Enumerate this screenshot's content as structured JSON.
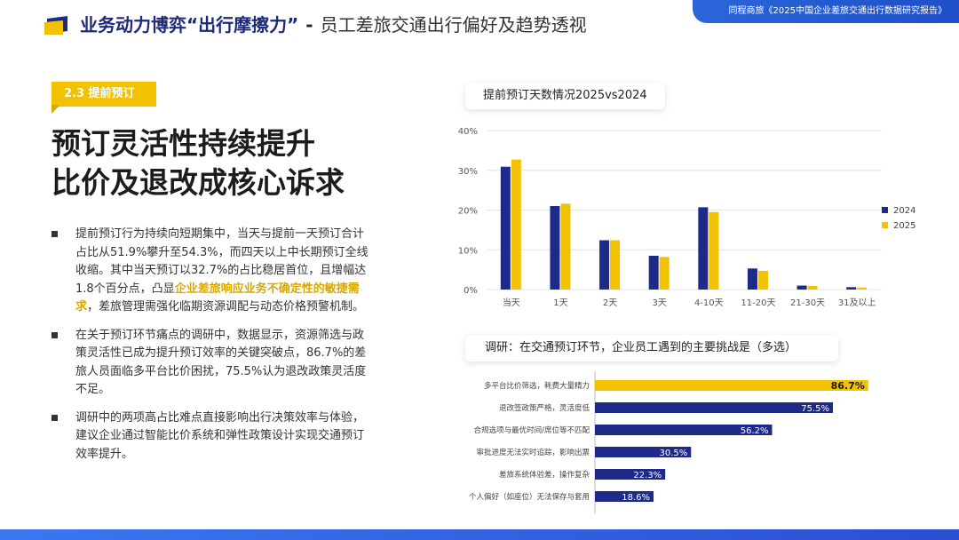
{
  "header": {
    "title_main": "业务动力博弈“出行摩擦力”",
    "separator": "-",
    "title_sub": "员工差旅交通出行偏好及趋势透视",
    "source": "同程商旅《2025中国企业差旅交通出行数据研究报告》"
  },
  "section": {
    "tag": "2.3 提前预订",
    "headline_line1": "预订灵活性持续提升",
    "headline_line2": "比价及退改成核心诉求"
  },
  "bullets": [
    {
      "pre": "提前预订行为持续向短期集中，当天与提前一天预订合计占比从51.9%攀升至54.3%，而四天以上中长期预订全线收缩。其中当天预订以32.7%的占比稳居首位，且增幅达1.8个百分点，凸显",
      "highlight": "企业差旅响应业务不确定性的敏捷需求",
      "post": "，差旅管理需强化临期资源调配与动态价格预警机制。"
    },
    {
      "pre": "在关于预订环节痛点的调研中，数据显示，资源筛选与政策灵活性已成为提升预订效率的关键突破点，86.7%的差旅人员面临多平台比价困扰，75.5%认为退改政策灵活度不足。",
      "highlight": "",
      "post": ""
    },
    {
      "pre": "调研中的两项高占比难点直接影响出行决策效率与体验，建议企业通过智能比价系统和弹性政策设计实现交通预订效率提升。",
      "highlight": "",
      "post": ""
    }
  ],
  "colors": {
    "navy": "#1e2a8a",
    "gold": "#f2c200",
    "accent_blue": "#2b66d9"
  },
  "chart_data": [
    {
      "type": "bar",
      "title": "提前预订天数情况2025vs2024",
      "categories": [
        "当天",
        "1天",
        "2天",
        "3天",
        "4-10天",
        "11-20天",
        "21-30天",
        "31及以上"
      ],
      "series": [
        {
          "name": "2024",
          "color": "#1e2a8a",
          "values": [
            30.9,
            21.0,
            12.4,
            8.5,
            20.7,
            5.3,
            1.0,
            0.6
          ]
        },
        {
          "name": "2025",
          "color": "#f2c200",
          "values": [
            32.7,
            21.6,
            12.4,
            8.2,
            19.5,
            4.7,
            0.9,
            0.5
          ]
        }
      ],
      "yticks": [
        "0%",
        "10%",
        "20%",
        "30%",
        "40%"
      ],
      "ylim": [
        0,
        40
      ],
      "grid": true,
      "legend": "right"
    },
    {
      "type": "bar",
      "orientation": "horizontal",
      "title": "调研：在交通预订环节，企业员工遇到的主要挑战是（多选）",
      "categories": [
        "多平台比价筛选，耗费大量精力",
        "退改签政策严格，灵活度低",
        "合规选项与最优时间/席位等不匹配",
        "审批进度无法实时追踪，影响出票",
        "差旅系统体验差，操作复杂",
        "个人偏好（如座位）无法保存与套用"
      ],
      "values": [
        86.7,
        75.5,
        56.2,
        30.5,
        22.3,
        18.6
      ],
      "labels": [
        "86.7%",
        "75.5%",
        "56.2%",
        "30.5%",
        "22.3%",
        "18.6%"
      ],
      "xlim": [
        0,
        100
      ]
    }
  ]
}
